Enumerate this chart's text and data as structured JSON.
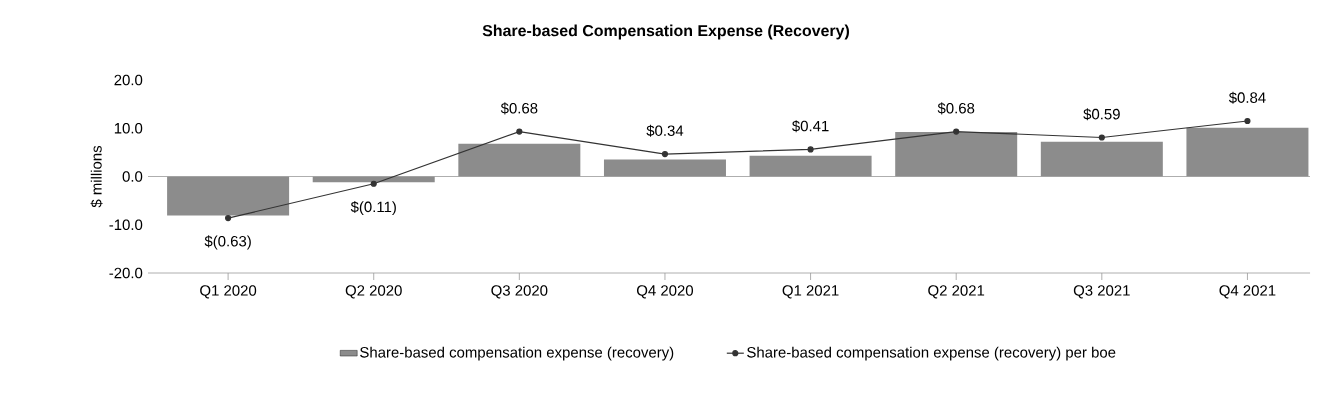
{
  "chart_data": {
    "type": "bar",
    "title": "Share-based Compensation Expense (Recovery)",
    "ylabel": "$ millions",
    "categories": [
      "Q1 2020",
      "Q2 2020",
      "Q3 2020",
      "Q4 2020",
      "Q1 2021",
      "Q2 2021",
      "Q3 2021",
      "Q4 2021"
    ],
    "ylim": [
      -20,
      20
    ],
    "yticks": [
      {
        "value": -20,
        "label": "-20.0"
      },
      {
        "value": -10,
        "label": "-10.0"
      },
      {
        "value": 0,
        "label": "0.0"
      },
      {
        "value": 10,
        "label": "10.0"
      },
      {
        "value": 20,
        "label": "20.0"
      }
    ],
    "legend": "bottom",
    "series": [
      {
        "name": "Share-based compensation expense (recovery)",
        "color": "#8c8c8c",
        "values": [
          -8.1,
          -1.2,
          6.8,
          3.5,
          4.3,
          9.2,
          7.2,
          10.1
        ]
      },
      {
        "name": "Share-based compensation expense (recovery) per boe",
        "type": "line",
        "axis": "y2",
        "color": "#333333",
        "marker": "circle",
        "values": [
          -0.63,
          -0.11,
          0.68,
          0.34,
          0.41,
          0.68,
          0.59,
          0.84
        ],
        "value_labels": [
          "$(0.63)",
          "$(0.11)",
          "$0.68",
          "$0.34",
          "$0.41",
          "$0.68",
          "$0.59",
          "$0.84"
        ]
      }
    ]
  }
}
